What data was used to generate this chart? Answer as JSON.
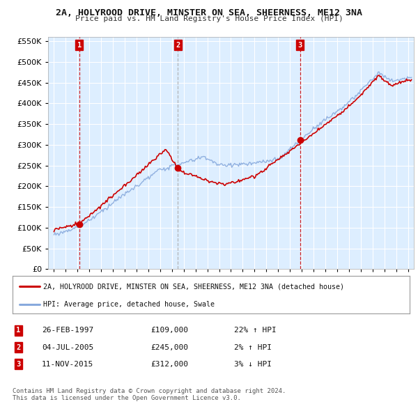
{
  "title1": "2A, HOLYROOD DRIVE, MINSTER ON SEA, SHEERNESS, ME12 3NA",
  "title2": "Price paid vs. HM Land Registry's House Price Index (HPI)",
  "sale_labels": [
    "1",
    "2",
    "3"
  ],
  "sale_hpi_text": [
    "22% ↑ HPI",
    "2% ↑ HPI",
    "3% ↓ HPI"
  ],
  "sale_date_text": [
    "26-FEB-1997",
    "04-JUL-2005",
    "11-NOV-2015"
  ],
  "sale_price_text": [
    "£109,000",
    "£245,000",
    "£312,000"
  ],
  "legend_line1": "2A, HOLYROOD DRIVE, MINSTER ON SEA, SHEERNESS, ME12 3NA (detached house)",
  "legend_line2": "HPI: Average price, detached house, Swale",
  "footer1": "Contains HM Land Registry data © Crown copyright and database right 2024.",
  "footer2": "This data is licensed under the Open Government Licence v3.0.",
  "ylim": [
    0,
    560000
  ],
  "yticks": [
    0,
    50000,
    100000,
    150000,
    200000,
    250000,
    300000,
    350000,
    400000,
    450000,
    500000,
    550000
  ],
  "xlim_start": 1994.5,
  "xlim_end": 2025.5,
  "line_color_red": "#cc0000",
  "line_color_blue": "#88aadd",
  "vline_color_red": "#cc0000",
  "vline_color_gray": "#aaaaaa",
  "bg_color": "#ffffff",
  "chart_bg_color": "#ddeeff",
  "grid_color": "#ffffff",
  "sale_box_color": "#cc0000",
  "sale_times": [
    1997.15,
    2005.51,
    2015.86
  ]
}
